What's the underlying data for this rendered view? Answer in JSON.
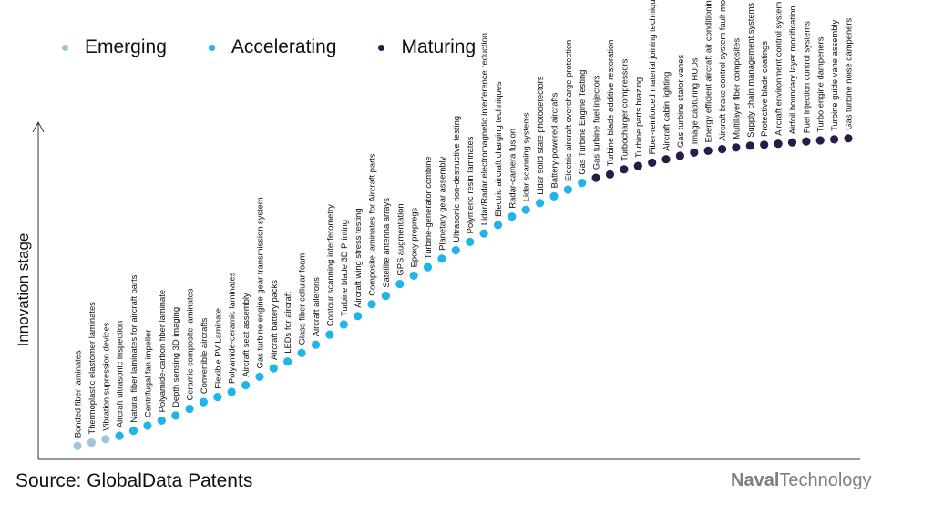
{
  "legend": {
    "emerging": {
      "label": "Emerging",
      "color": "#9ec6d8"
    },
    "accelerating": {
      "label": "Accelerating",
      "color": "#1fb5ea"
    },
    "maturing": {
      "label": "Maturing",
      "color": "#2a1a48"
    }
  },
  "footer": {
    "source": "Source: GlobalData Patents",
    "brand_bold": "Naval",
    "brand_rest": "Technology"
  },
  "chart_data": {
    "type": "scatter",
    "ylabel": "Innovation stage",
    "ylim": [
      0,
      100
    ],
    "points": [
      {
        "label": "Bonded fiber laminates",
        "stage": "emerging",
        "value": 4
      },
      {
        "label": "Thermoplastic elastomer laminates",
        "stage": "emerging",
        "value": 5
      },
      {
        "label": "Vibration supression devices",
        "stage": "emerging",
        "value": 6
      },
      {
        "label": "Aircraft ultrasonic inspection",
        "stage": "accelerating",
        "value": 7
      },
      {
        "label": "Natural fiber laminates for aircraft parts",
        "stage": "accelerating",
        "value": 8.5
      },
      {
        "label": "Centrifugal fan impeller",
        "stage": "accelerating",
        "value": 10
      },
      {
        "label": "Polyamide-carbon fiber laminate",
        "stage": "accelerating",
        "value": 11.5
      },
      {
        "label": "Depth sensing 3D imaging",
        "stage": "accelerating",
        "value": 13
      },
      {
        "label": "Ceramic composite laminates",
        "stage": "accelerating",
        "value": 15
      },
      {
        "label": "Convertible aircrafts",
        "stage": "accelerating",
        "value": 17
      },
      {
        "label": "Flexible PV Laminate",
        "stage": "accelerating",
        "value": 18.5
      },
      {
        "label": "Polyamide-ceramic laminates",
        "stage": "accelerating",
        "value": 20
      },
      {
        "label": "Aircraft seat assembly",
        "stage": "accelerating",
        "value": 22
      },
      {
        "label": "Gas turbine engine gear transmission system",
        "stage": "accelerating",
        "value": 24.5
      },
      {
        "label": "Aircraft battery packs",
        "stage": "accelerating",
        "value": 27
      },
      {
        "label": "LEDs for aircraft",
        "stage": "accelerating",
        "value": 29
      },
      {
        "label": "Glass fiber cellular foam",
        "stage": "accelerating",
        "value": 31.5
      },
      {
        "label": "Aircraft ailerons",
        "stage": "accelerating",
        "value": 34
      },
      {
        "label": "Contour scanning interferometry",
        "stage": "accelerating",
        "value": 37
      },
      {
        "label": "Turbine blade 3D Printing",
        "stage": "accelerating",
        "value": 40
      },
      {
        "label": "Aircraft wing stress testing",
        "stage": "accelerating",
        "value": 42.5
      },
      {
        "label": "Composite laminates for Aircraft parts",
        "stage": "accelerating",
        "value": 46
      },
      {
        "label": "Satellite antenna arrays",
        "stage": "accelerating",
        "value": 48.5
      },
      {
        "label": "GPS augmentation",
        "stage": "accelerating",
        "value": 52
      },
      {
        "label": "Epoxy prepregs",
        "stage": "accelerating",
        "value": 54.5
      },
      {
        "label": "Turbine-generator combine",
        "stage": "accelerating",
        "value": 57
      },
      {
        "label": "Planetary gear assembly",
        "stage": "accelerating",
        "value": 59.5
      },
      {
        "label": "Ultrasonic non-destructive testing",
        "stage": "accelerating",
        "value": 62
      },
      {
        "label": "Polymeric resin laminates",
        "stage": "accelerating",
        "value": 64.5
      },
      {
        "label": "Lidar/Radar electromagnetic interference reduction",
        "stage": "accelerating",
        "value": 67
      },
      {
        "label": "Electric aircraft charging techniques",
        "stage": "accelerating",
        "value": 69.5
      },
      {
        "label": "Radar-camera fusion",
        "stage": "accelerating",
        "value": 72
      },
      {
        "label": "Lidar scanning systems",
        "stage": "accelerating",
        "value": 74
      },
      {
        "label": "Lidar solid state photodetectors",
        "stage": "accelerating",
        "value": 76
      },
      {
        "label": "Battery-powered aircrafts",
        "stage": "accelerating",
        "value": 78
      },
      {
        "label": "Electric aircraft overcharge protection",
        "stage": "accelerating",
        "value": 80
      },
      {
        "label": "Gas Turbine Engine Testing",
        "stage": "accelerating",
        "value": 82
      },
      {
        "label": "Gas turbine fuel injectors",
        "stage": "maturing",
        "value": 83.5
      },
      {
        "label": "Turbine blade additive restoration",
        "stage": "maturing",
        "value": 84.5
      },
      {
        "label": "Turbocharger compressors",
        "stage": "maturing",
        "value": 86
      },
      {
        "label": "Turbine parts brazing",
        "stage": "maturing",
        "value": 87
      },
      {
        "label": "Fiber-reinforced material joining techniques",
        "stage": "maturing",
        "value": 88
      },
      {
        "label": "Aircraft cabin lighting",
        "stage": "maturing",
        "value": 89
      },
      {
        "label": "Gas turbine stator vanes",
        "stage": "maturing",
        "value": 90
      },
      {
        "label": "Image capturing HUDs",
        "stage": "maturing",
        "value": 91
      },
      {
        "label": "Energy efficient aircraft air conditioning",
        "stage": "maturing",
        "value": 91.5
      },
      {
        "label": "Aircraft brake control system fault monitoring",
        "stage": "maturing",
        "value": 92
      },
      {
        "label": "Multilayer fiber composites",
        "stage": "maturing",
        "value": 92.5
      },
      {
        "label": "Supply chain management systems",
        "stage": "maturing",
        "value": 93
      },
      {
        "label": "Protective blade coatings",
        "stage": "maturing",
        "value": 93.3
      },
      {
        "label": "Aircraft environment control system",
        "stage": "maturing",
        "value": 93.6
      },
      {
        "label": "Airfoil boundary layer modification",
        "stage": "maturing",
        "value": 94
      },
      {
        "label": "Fuel injection control systems",
        "stage": "maturing",
        "value": 94.3
      },
      {
        "label": "Turbo engine dampeners",
        "stage": "maturing",
        "value": 94.6
      },
      {
        "label": "Turbine guide vane assembly",
        "stage": "maturing",
        "value": 94.9
      },
      {
        "label": "Gas turbine noise dampeners",
        "stage": "maturing",
        "value": 95.2
      }
    ]
  }
}
